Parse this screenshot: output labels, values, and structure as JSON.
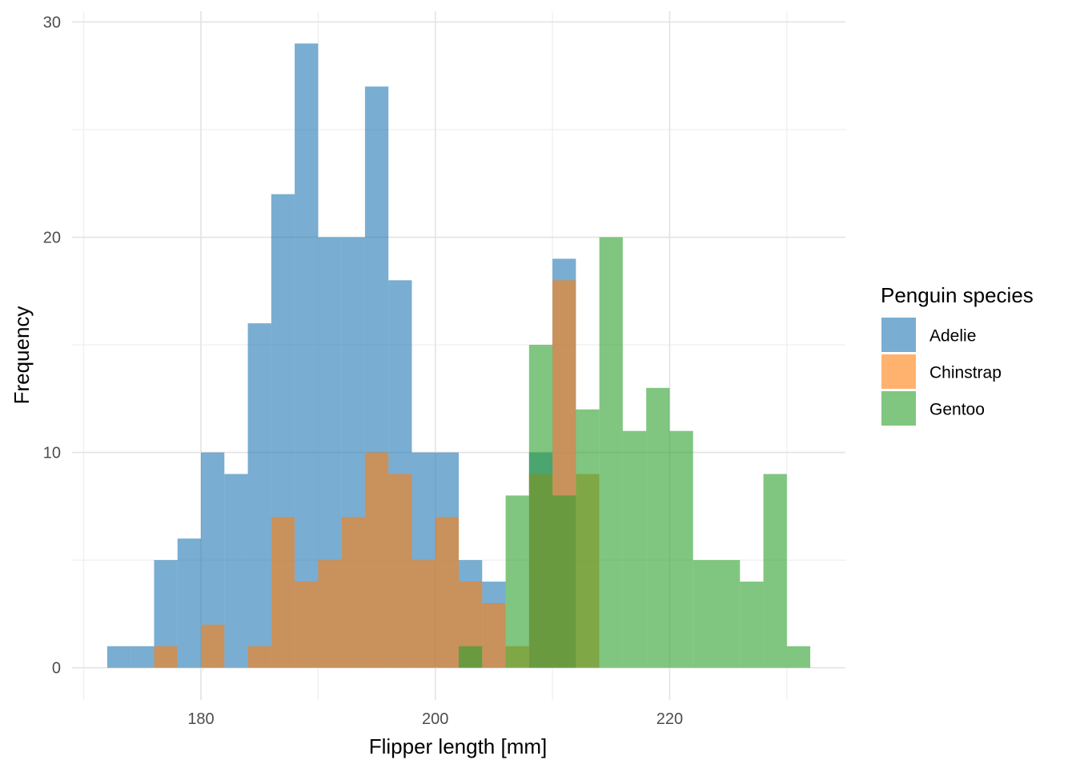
{
  "chart_data": {
    "type": "bar",
    "stacked": false,
    "bin_width": 2,
    "xlabel": "Flipper length [mm]",
    "ylabel": "Frequency",
    "xlim": [
      169,
      235
    ],
    "ylim": [
      -1.5,
      30.5
    ],
    "x_ticks": [
      180,
      200,
      220
    ],
    "y_ticks": [
      0,
      10,
      20,
      30
    ],
    "grid": true,
    "legend": {
      "title": "Penguin species",
      "position": "right"
    },
    "series": [
      {
        "name": "Adelie",
        "color": "#1F77B4",
        "bin_starts": [
          172,
          174,
          176,
          178,
          180,
          182,
          184,
          186,
          188,
          190,
          192,
          194,
          196,
          198,
          200,
          202,
          204,
          206,
          208,
          210
        ],
        "values": [
          1,
          1,
          5,
          6,
          10,
          9,
          16,
          22,
          29,
          20,
          20,
          27,
          18,
          10,
          10,
          5,
          4,
          0,
          10,
          19
        ]
      },
      {
        "name": "Chinstrap",
        "color": "#FF7F0E",
        "bin_starts": [
          176,
          178,
          180,
          182,
          184,
          186,
          188,
          190,
          192,
          194,
          196,
          198,
          200,
          202,
          204,
          206,
          208,
          210,
          212
        ],
        "values": [
          1,
          0,
          2,
          0,
          1,
          7,
          4,
          5,
          7,
          10,
          9,
          5,
          7,
          4,
          3,
          1,
          9,
          18,
          9
        ]
      },
      {
        "name": "Gentoo",
        "color": "#2CA02C",
        "bin_starts": [
          202,
          204,
          206,
          208,
          210,
          212,
          214,
          216,
          218,
          220,
          222,
          224,
          226,
          228,
          230
        ],
        "values": [
          1,
          0,
          8,
          15,
          8,
          12,
          20,
          11,
          13,
          11,
          5,
          5,
          4,
          9,
          1
        ]
      }
    ],
    "opacity": 0.6
  }
}
